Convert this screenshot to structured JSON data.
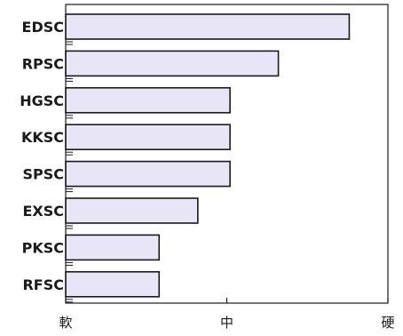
{
  "chart_data": {
    "type": "bar",
    "orientation": "horizontal",
    "categories": [
      "EDSC",
      "RPSC",
      "HGSC",
      "KKSC",
      "SPSC",
      "EXSC",
      "PKSC",
      "RFSC"
    ],
    "values": [
      0.88,
      0.66,
      0.51,
      0.51,
      0.51,
      0.41,
      0.29,
      0.29
    ],
    "x_ticks": [
      {
        "value": 0,
        "label": "軟"
      },
      {
        "value": 0.5,
        "label": "中"
      },
      {
        "value": 1,
        "label": "硬"
      }
    ],
    "xlim": [
      0,
      1
    ],
    "title": "",
    "xlabel": "",
    "ylabel": "",
    "grid": false,
    "legend": "none",
    "bar_color": "#e8e6f6",
    "edge_color": "#1a1a1a"
  }
}
